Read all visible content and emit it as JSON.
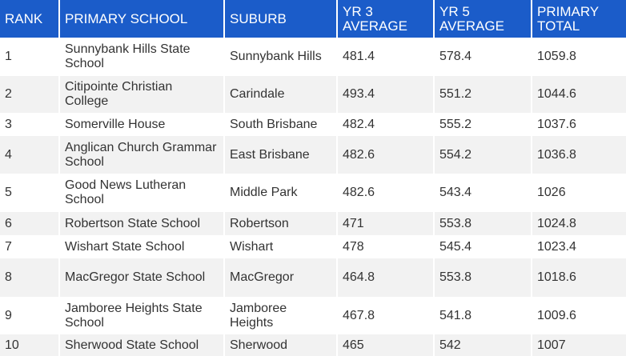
{
  "table": {
    "header": [
      "RANK",
      "PRIMARY SCHOOL",
      "SUBURB",
      "YR 3 AVERAGE",
      "YR 5 AVERAGE",
      "PRIMARY TOTAL"
    ],
    "rows": [
      [
        "1",
        "Sunnybank Hills State School",
        "Sunnybank Hills",
        "481.4",
        "578.4",
        "1059.8"
      ],
      [
        "2",
        "Citipointe Christian College",
        "Carindale",
        "493.4",
        "551.2",
        "1044.6"
      ],
      [
        "3",
        "Somerville House",
        "South Brisbane",
        "482.4",
        "555.2",
        "1037.6"
      ],
      [
        "4",
        "Anglican Church Grammar School",
        "East Brisbane",
        "482.6",
        "554.2",
        "1036.8"
      ],
      [
        "5",
        "Good News Lutheran School",
        "Middle Park",
        "482.6",
        "543.4",
        "1026"
      ],
      [
        "6",
        "Robertson State School",
        "Robertson",
        "471",
        "553.8",
        "1024.8"
      ],
      [
        "7",
        "Wishart State School",
        "Wishart",
        "478",
        "545.4",
        "1023.4"
      ],
      [
        "8",
        "MacGregor State School",
        "MacGregor",
        "464.8",
        "553.8",
        "1018.6"
      ],
      [
        "9",
        "Jamboree Heights State School",
        "Jamboree Heights",
        "467.8",
        "541.8",
        "1009.6"
      ],
      [
        "10",
        "Sherwood State School",
        "Sherwood",
        "465",
        "542",
        "1007"
      ]
    ]
  }
}
